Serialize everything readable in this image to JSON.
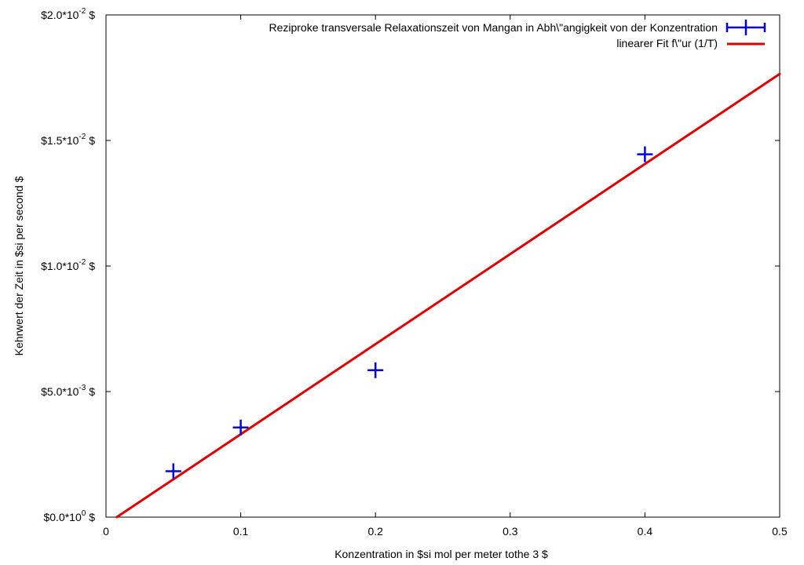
{
  "chart_data": {
    "type": "scatter",
    "xlabel": "Konzentration in  $si mol per meter tothe 3  $",
    "ylabel": "Kehrwert der Zeit in $si per second $",
    "xlim": [
      0,
      0.5
    ],
    "ylim": [
      0,
      0.02
    ],
    "grid": false,
    "legend_position": "top-right",
    "x_ticks": [
      {
        "value": 0,
        "label": "0"
      },
      {
        "value": 0.1,
        "label": "0.1"
      },
      {
        "value": 0.2,
        "label": "0.2"
      },
      {
        "value": 0.3,
        "label": "0.3"
      },
      {
        "value": 0.4,
        "label": "0.4"
      },
      {
        "value": 0.5,
        "label": "0.5"
      }
    ],
    "y_ticks": [
      {
        "value": 0,
        "mant": "$0.0*10",
        "exp": "0",
        "suf": " $"
      },
      {
        "value": 0.005,
        "mant": "$5.0*10",
        "exp": "-3",
        "suf": " $"
      },
      {
        "value": 0.01,
        "mant": "$1.0*10",
        "exp": "-2",
        "suf": " $"
      },
      {
        "value": 0.015,
        "mant": "$1.5*10",
        "exp": "-2",
        "suf": " $"
      },
      {
        "value": 0.02,
        "mant": "$2.0*10",
        "exp": "-2",
        "suf": " $"
      }
    ],
    "series": [
      {
        "name": "Reziproke transversale Relaxationszeit von Mangan in Abh\\\"angigkeit von der Konzentration",
        "kind": "points",
        "color": "#0000dd",
        "x": [
          0.05,
          0.1,
          0.2,
          0.4
        ],
        "y": [
          0.00183,
          0.00357,
          0.00585,
          0.01445
        ]
      },
      {
        "name": "linearer Fit f\\\"ur (1/T)",
        "kind": "line",
        "color": "#dd0000",
        "x": [
          0.008,
          0.5
        ],
        "y": [
          0.0,
          0.01765
        ]
      }
    ]
  }
}
